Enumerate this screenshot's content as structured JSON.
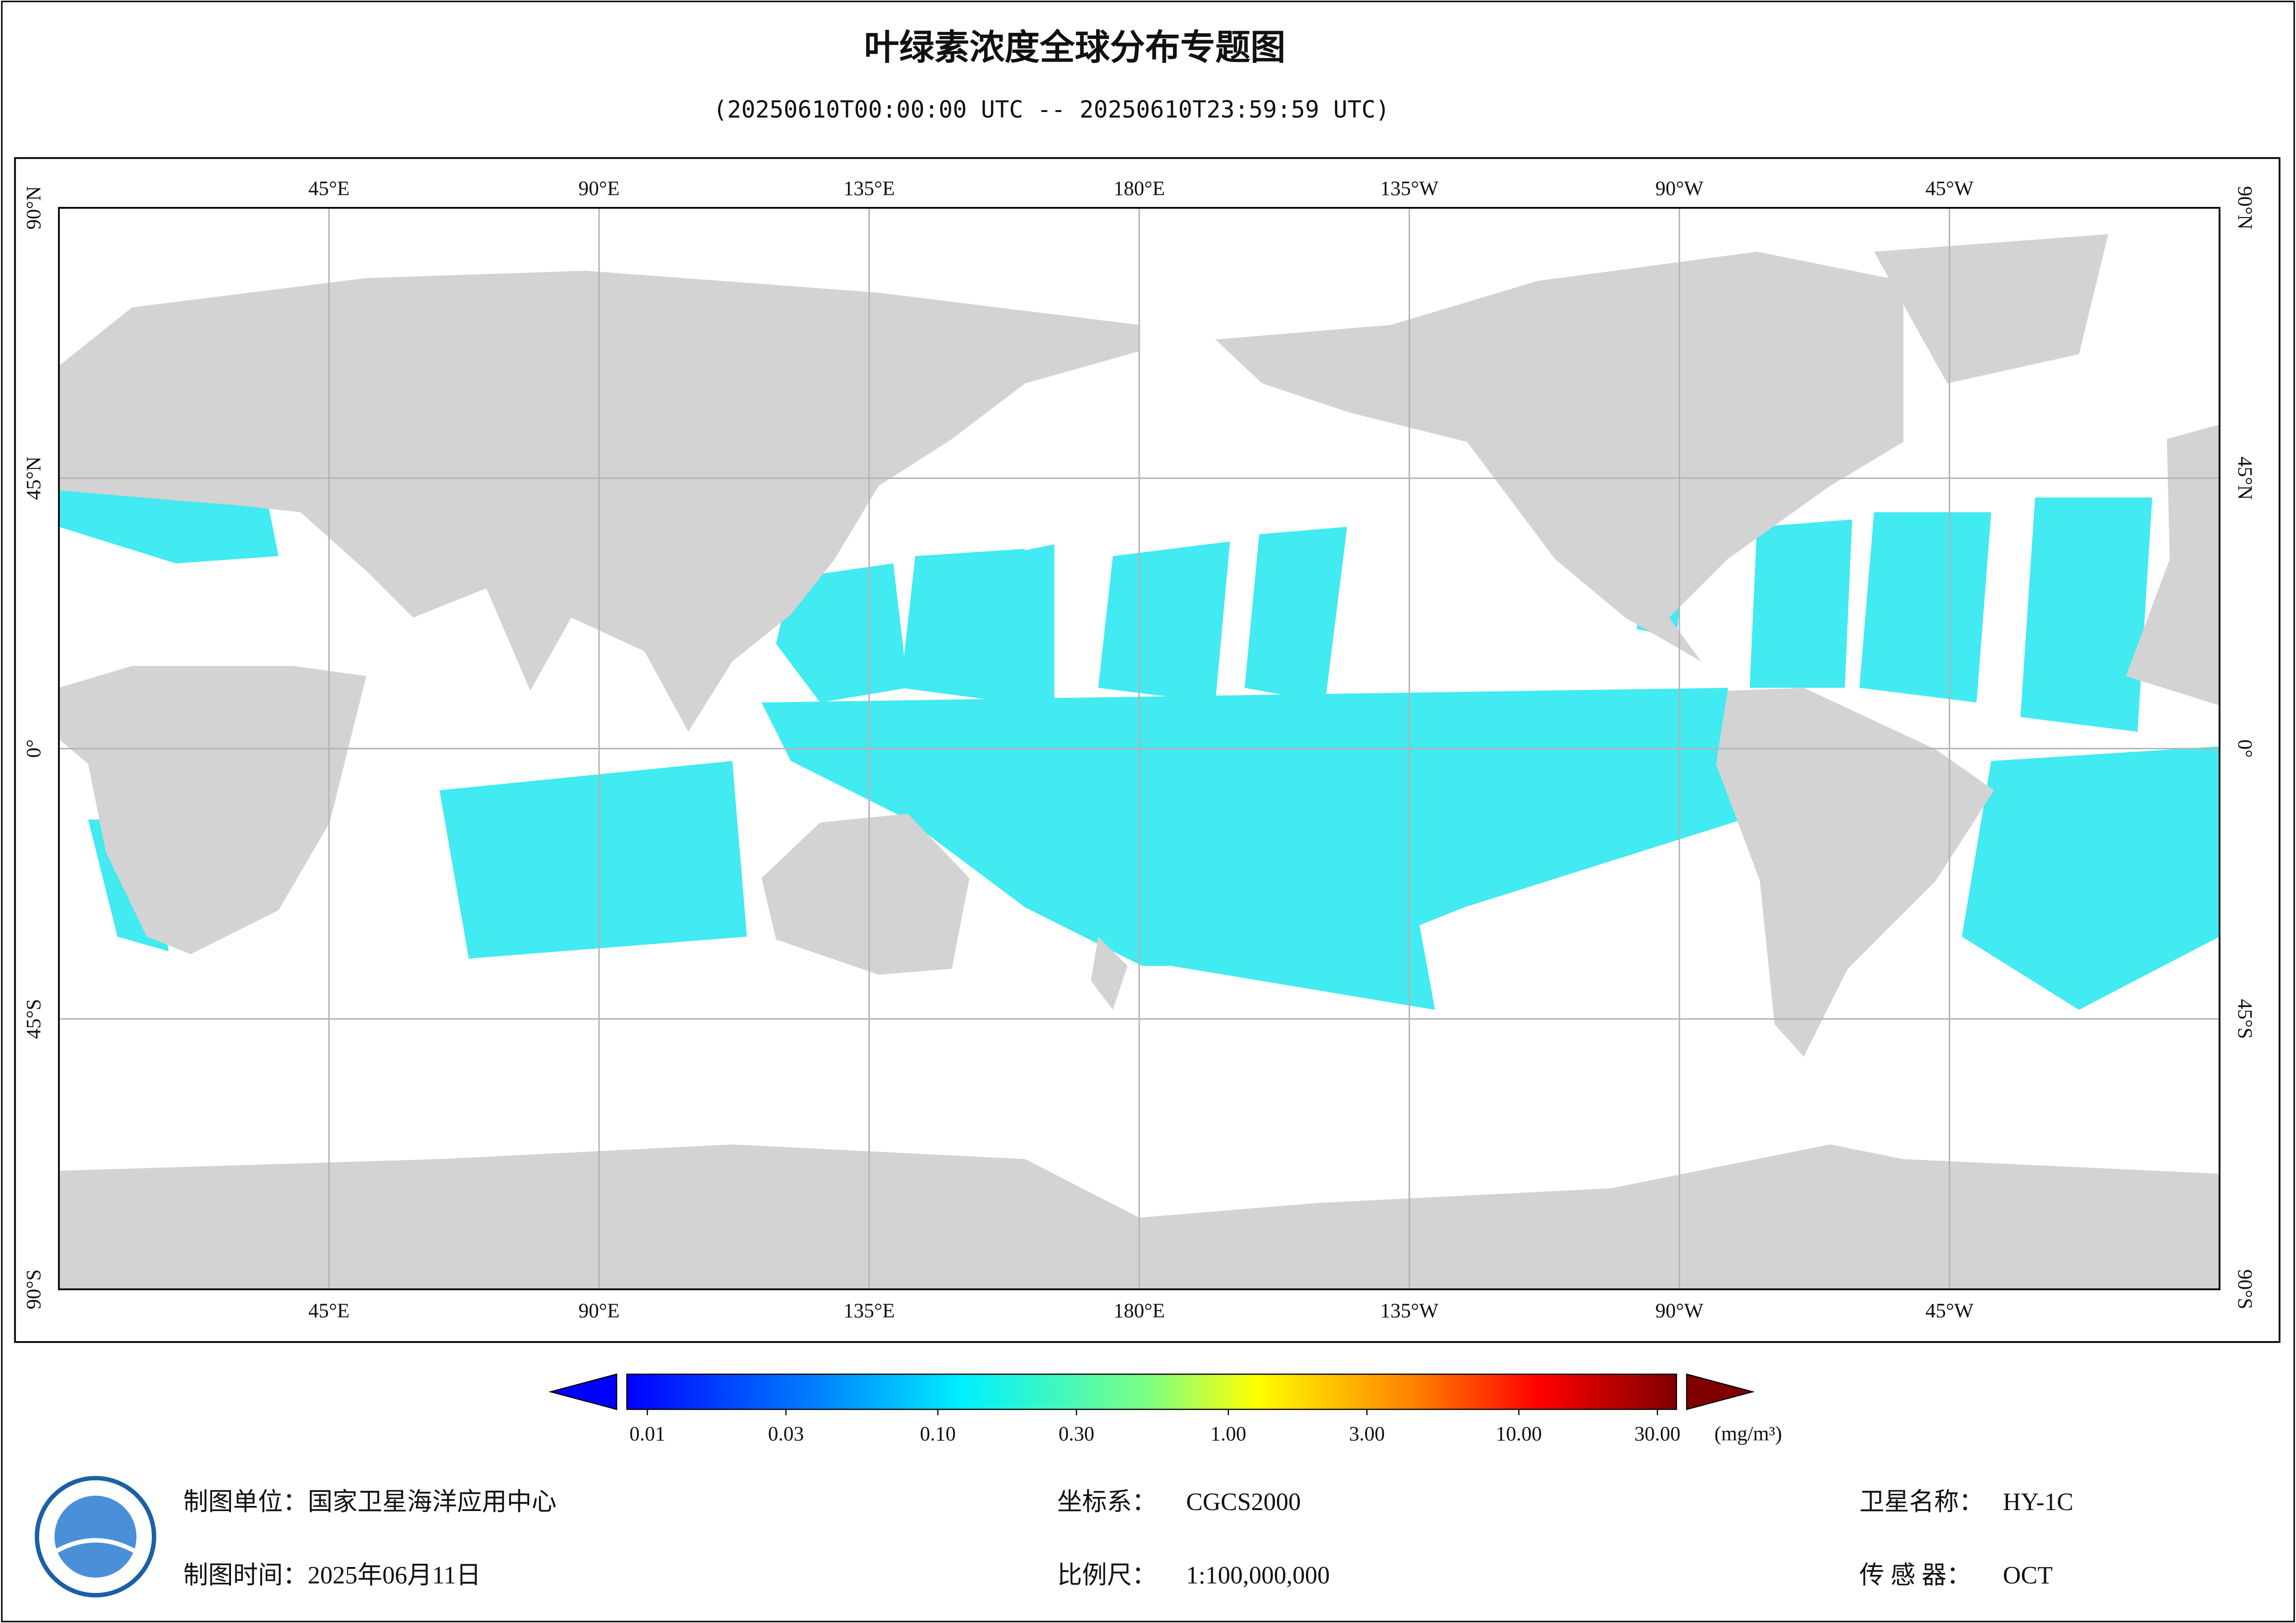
{
  "header": {
    "title": "叶绿素浓度全球分布专题图",
    "subtitle": "(20250610T00:00:00 UTC -- 20250610T23:59:59 UTC)"
  },
  "map": {
    "lonlim": [
      0,
      360
    ],
    "latlim": [
      90,
      -90
    ],
    "lon_ticks": [
      {
        "value": 45,
        "label": "45°E"
      },
      {
        "value": 90,
        "label": "90°E"
      },
      {
        "value": 135,
        "label": "135°E"
      },
      {
        "value": 180,
        "label": "180°E"
      },
      {
        "value": 225,
        "label": "135°W"
      },
      {
        "value": 270,
        "label": "90°W"
      },
      {
        "value": 315,
        "label": "45°W"
      }
    ],
    "lat_ticks": [
      {
        "value": 90,
        "label": "90°N"
      },
      {
        "value": 45,
        "label": "45°N"
      },
      {
        "value": 0,
        "label": "0°"
      },
      {
        "value": -45,
        "label": "45°S"
      },
      {
        "value": -90,
        "label": "90°S"
      }
    ]
  },
  "colorbar": {
    "scale": "log",
    "lim": [
      0.01,
      30
    ],
    "ticks": [
      {
        "value": 0.01,
        "label": "0.01"
      },
      {
        "value": 0.03,
        "label": "0.03"
      },
      {
        "value": 0.1,
        "label": "0.10"
      },
      {
        "value": 0.3,
        "label": "0.30"
      },
      {
        "value": 1,
        "label": "1.00"
      },
      {
        "value": 3,
        "label": "3.00"
      },
      {
        "value": 10,
        "label": "10.00"
      },
      {
        "value": 30,
        "label": "30.00"
      }
    ],
    "unit": "(mg/m³)"
  },
  "footer": {
    "agency": "制图单位：国家卫星海洋应用中心",
    "date": "制图时间：2025年06月11日",
    "crs_label": "坐标系：",
    "crs": "CGCS2000",
    "scale_label": "比例尺：",
    "scale": "1:100,000,000",
    "satellite_label": "卫星名称：",
    "satellite": "HY-1C",
    "sensor_label": "传 感 器：",
    "sensor": "OCT"
  }
}
